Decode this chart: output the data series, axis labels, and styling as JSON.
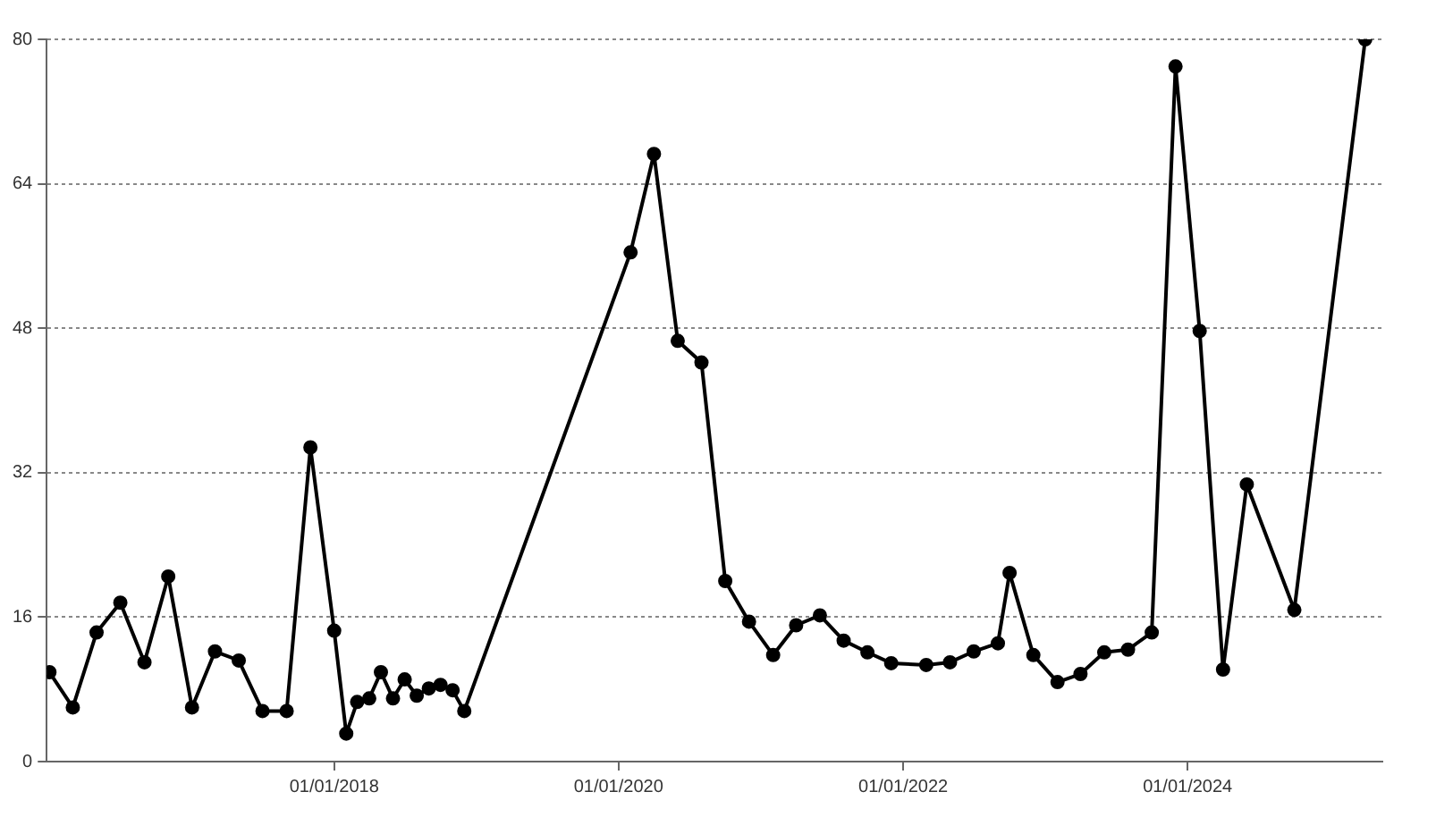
{
  "chart_data": {
    "type": "line",
    "x": [
      "2016-01",
      "2016-03",
      "2016-05",
      "2016-07",
      "2016-09",
      "2016-11",
      "2017-01",
      "2017-03",
      "2017-05",
      "2017-07",
      "2017-09",
      "2017-11",
      "2018-01",
      "2018-02",
      "2018-03",
      "2018-04",
      "2018-05",
      "2018-06",
      "2018-07",
      "2018-08",
      "2018-09",
      "2018-10",
      "2018-11",
      "2018-12",
      "2020-02",
      "2020-04",
      "2020-06",
      "2020-08",
      "2020-10",
      "2020-12",
      "2021-02",
      "2021-04",
      "2021-06",
      "2021-08",
      "2021-10",
      "2021-12",
      "2022-03",
      "2022-05",
      "2022-07",
      "2022-09",
      "2022-10",
      "2022-12",
      "2023-02",
      "2023-04",
      "2023-06",
      "2023-08",
      "2023-10",
      "2023-12",
      "2024-02",
      "2024-04",
      "2024-06",
      "2024-10",
      "2025-04"
    ],
    "series": [
      {
        "color": "#000000",
        "values": [
          9.9,
          6.0,
          14.3,
          17.6,
          11.0,
          20.5,
          6.0,
          12.2,
          11.2,
          5.6,
          5.6,
          34.8,
          14.5,
          3.1,
          6.6,
          7.0,
          9.9,
          7.0,
          9.1,
          7.3,
          8.1,
          8.5,
          7.9,
          5.6,
          56.4,
          67.3,
          46.6,
          44.2,
          20.0,
          15.5,
          11.8,
          15.1,
          16.2,
          13.4,
          12.1,
          10.9,
          10.7,
          11.0,
          12.2,
          13.1,
          20.9,
          11.8,
          8.8,
          9.7,
          12.1,
          12.4,
          14.3,
          77.0,
          47.7,
          10.2,
          30.7,
          16.8,
          80
        ]
      }
    ],
    "xlim": [
      "2015-12-25",
      "2025-05-15"
    ],
    "xticks": [
      {
        "value": "2018-01-01",
        "label": "01/01/2018"
      },
      {
        "value": "2020-01-01",
        "label": "01/01/2020"
      },
      {
        "value": "2022-01-01",
        "label": "01/01/2022"
      },
      {
        "value": "2024-01-01",
        "label": "01/01/2024"
      }
    ],
    "ylim": [
      0,
      80
    ],
    "yticks": [
      0,
      16,
      32,
      48,
      64,
      80
    ],
    "grid": "y",
    "legend": false,
    "marker": "circle",
    "line_style": "solid"
  }
}
